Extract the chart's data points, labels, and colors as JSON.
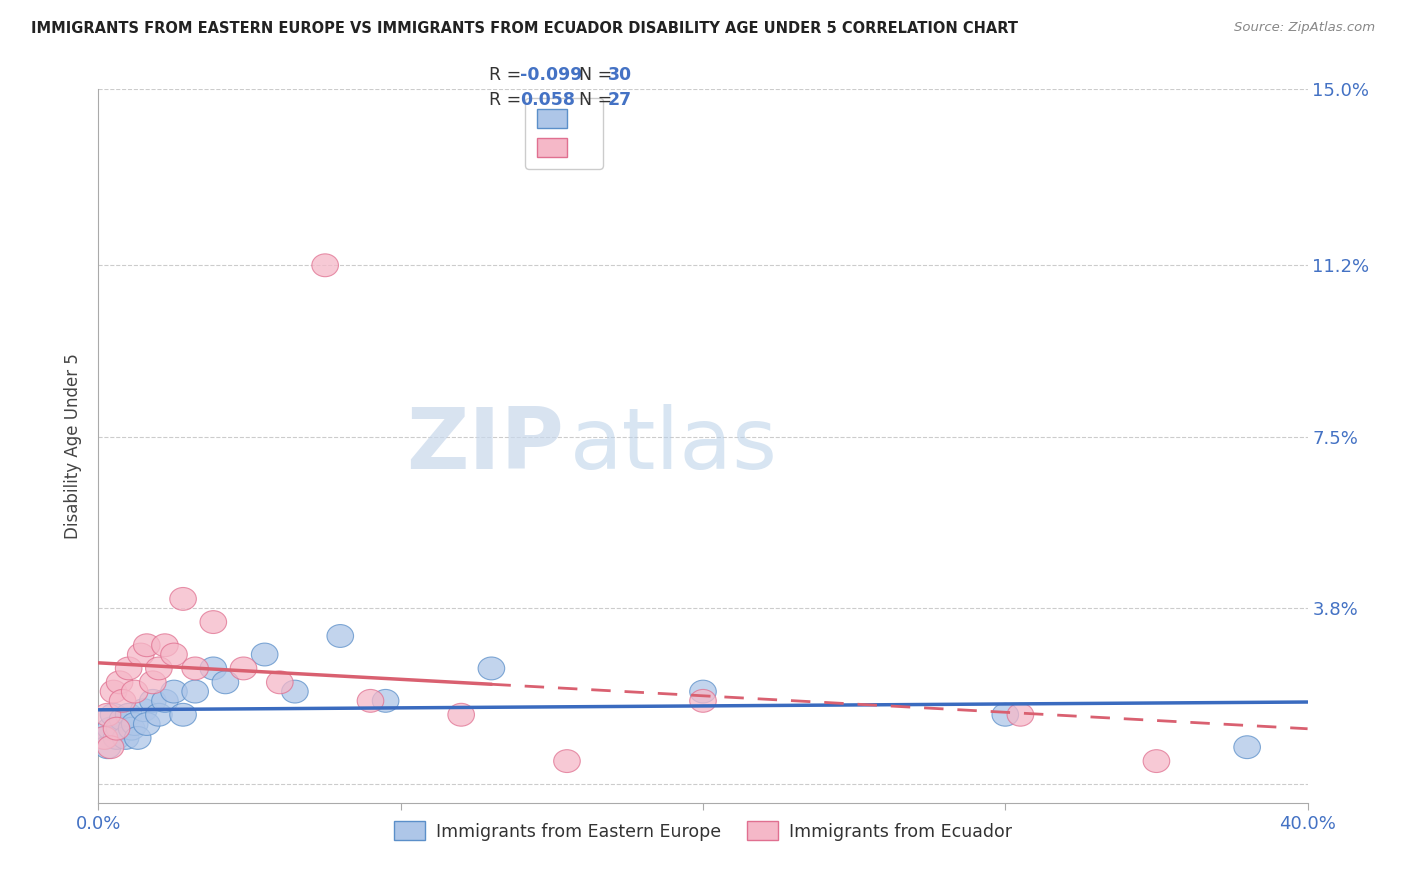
{
  "title": "IMMIGRANTS FROM EASTERN EUROPE VS IMMIGRANTS FROM ECUADOR DISABILITY AGE UNDER 5 CORRELATION CHART",
  "source": "Source: ZipAtlas.com",
  "ylabel": "Disability Age Under 5",
  "xmin": 0.0,
  "xmax": 0.4,
  "ymin": -0.004,
  "ymax": 0.15,
  "ytick_vals": [
    0.0,
    0.038,
    0.075,
    0.112,
    0.15
  ],
  "ytick_labels": [
    "",
    "3.8%",
    "7.5%",
    "11.2%",
    "15.0%"
  ],
  "xtick_vals": [
    0.0,
    0.1,
    0.2,
    0.3,
    0.4
  ],
  "xtick_labels": [
    "0.0%",
    "",
    "",
    "",
    "40.0%"
  ],
  "blue_R": -0.099,
  "blue_N": 30,
  "pink_R": 0.058,
  "pink_N": 27,
  "blue_face": "#aec6e8",
  "pink_face": "#f5b8c8",
  "blue_edge": "#5b8fc9",
  "pink_edge": "#e07090",
  "blue_line": "#3a6bbf",
  "pink_line": "#d96070",
  "watermark_zip": "ZIP",
  "watermark_atlas": "atlas",
  "legend_label_blue": "Immigrants from Eastern Europe",
  "legend_label_pink": "Immigrants from Ecuador",
  "blue_x": [
    0.002,
    0.003,
    0.004,
    0.005,
    0.006,
    0.007,
    0.008,
    0.009,
    0.01,
    0.011,
    0.012,
    0.013,
    0.015,
    0.016,
    0.018,
    0.02,
    0.022,
    0.025,
    0.028,
    0.032,
    0.038,
    0.042,
    0.055,
    0.065,
    0.08,
    0.095,
    0.13,
    0.2,
    0.3,
    0.38
  ],
  "blue_y": [
    0.01,
    0.008,
    0.012,
    0.015,
    0.01,
    0.012,
    0.014,
    0.01,
    0.015,
    0.012,
    0.013,
    0.01,
    0.016,
    0.013,
    0.018,
    0.015,
    0.018,
    0.02,
    0.015,
    0.02,
    0.025,
    0.022,
    0.028,
    0.02,
    0.032,
    0.018,
    0.025,
    0.02,
    0.015,
    0.008
  ],
  "pink_x": [
    0.002,
    0.003,
    0.004,
    0.005,
    0.006,
    0.007,
    0.008,
    0.01,
    0.012,
    0.014,
    0.016,
    0.018,
    0.02,
    0.022,
    0.025,
    0.028,
    0.032,
    0.038,
    0.048,
    0.06,
    0.075,
    0.09,
    0.12,
    0.155,
    0.2,
    0.305,
    0.35
  ],
  "pink_y": [
    0.01,
    0.015,
    0.008,
    0.02,
    0.012,
    0.022,
    0.018,
    0.025,
    0.02,
    0.028,
    0.03,
    0.022,
    0.025,
    0.03,
    0.028,
    0.04,
    0.025,
    0.035,
    0.025,
    0.022,
    0.112,
    0.018,
    0.015,
    0.005,
    0.018,
    0.015,
    0.005
  ]
}
